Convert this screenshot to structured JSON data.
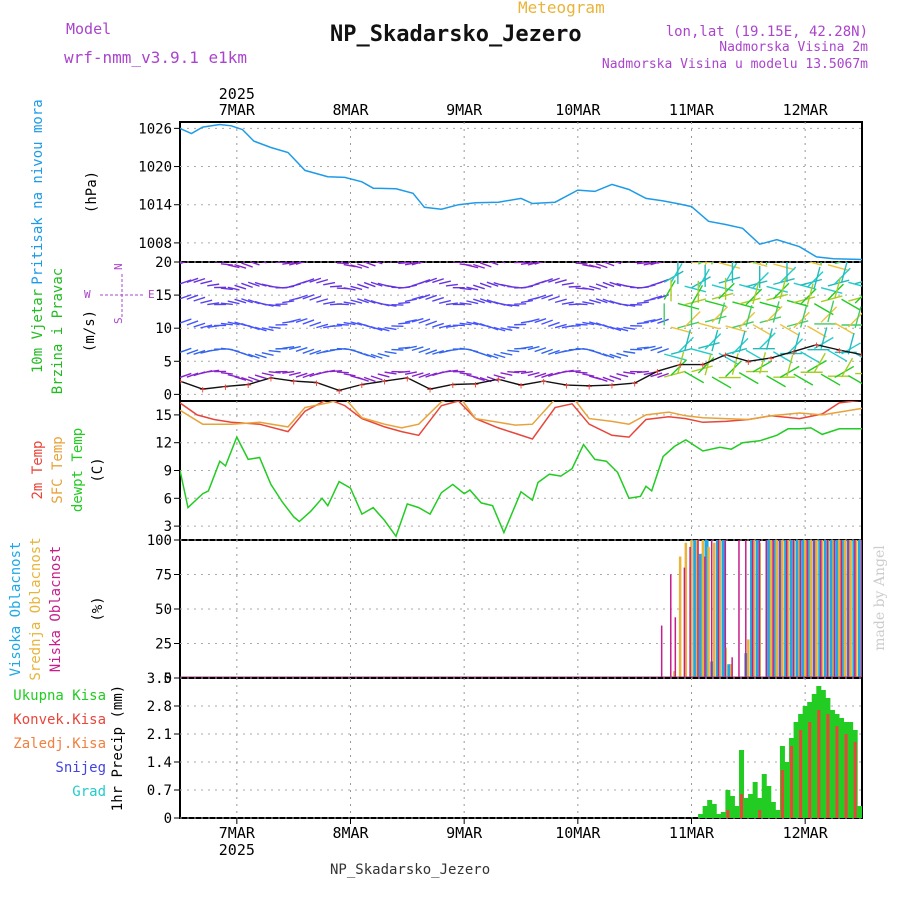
{
  "header": {
    "model_label": "Model",
    "model_name": "wrf-nmm_v3.9.1 e1km",
    "meteogram_label": "Meteogram",
    "station_title": "NP_Skadarsko_Jezero",
    "lonlat": "lon,lat (19.15E, 42.28N)",
    "elevation": "Nadmorska Visina 2m",
    "model_elevation": "Nadmorska Visina u modelu 13.5067m",
    "footer_station": "NP_Skadarsko_Jezero",
    "credit": "made by Angel"
  },
  "colors": {
    "pressure": "#1e9be8",
    "wind_label": "#22bb22",
    "temp2m": "#e8463a",
    "sfc_temp": "#e8a23a",
    "dewpt": "#22cc22",
    "cloud_high": "#1ea8e8",
    "cloud_mid": "#e8b43a",
    "cloud_low": "#c81e8c",
    "precip_total": "#22cc22",
    "precip_conv": "#e8463a",
    "precip_freeze": "#f08040",
    "precip_snow": "#4444dd",
    "precip_grad": "#22cccc",
    "legend_purple": "#aa44cc",
    "title_orange": "#e8b43a"
  },
  "chart_data": [
    {
      "type": "line",
      "panel": "pressure",
      "title": "Pritisak na nivou mora",
      "ylabel": "(hPa)",
      "ylim": [
        1005,
        1027
      ],
      "yticks": [
        1026,
        1020,
        1014,
        1008
      ],
      "x_days": [
        "7MAR",
        "8MAR",
        "9MAR",
        "10MAR",
        "11MAR",
        "12MAR"
      ],
      "top_year": "2025",
      "x_range_days": [
        6.5,
        12.5
      ],
      "series": [
        {
          "x": [
            6.5,
            6.6,
            6.7,
            6.85,
            6.95,
            7.05,
            7.15,
            7.3,
            7.45,
            7.6,
            7.8,
            7.95,
            8.1,
            8.2,
            8.4,
            8.55,
            8.65,
            8.8,
            8.95,
            9.1,
            9.3,
            9.5,
            9.6,
            9.8,
            10.0,
            10.15,
            10.3,
            10.45,
            10.6,
            10.75,
            10.9,
            11.0,
            11.15,
            11.3,
            11.45,
            11.6,
            11.75,
            11.95,
            12.1,
            12.25,
            12.5
          ],
          "values": [
            1026,
            1025.2,
            1026.2,
            1026.6,
            1026.4,
            1025.8,
            1024,
            1023,
            1022.2,
            1019.4,
            1018.4,
            1018.3,
            1017.6,
            1016.6,
            1016.5,
            1015.8,
            1013.6,
            1013.3,
            1014,
            1014.3,
            1014.4,
            1015,
            1014.2,
            1014.4,
            1016.3,
            1016.1,
            1017.2,
            1016.4,
            1015,
            1014.6,
            1014.1,
            1013.7,
            1011.4,
            1010.9,
            1010.3,
            1007.8,
            1008.5,
            1007.4,
            1005.8,
            1005.5,
            1005.4
          ]
        }
      ]
    },
    {
      "type": "scatter",
      "panel": "wind",
      "title": "10m Vjetar Brzina i Pravac",
      "ylabel": "(m/s)",
      "ylim": [
        -1,
        20
      ],
      "yticks": [
        0,
        5,
        10,
        15,
        20
      ],
      "compass": {
        "north": "N",
        "south": "S",
        "east": "E",
        "west": "W"
      },
      "barb_rows": [
        20,
        16.5,
        14,
        10.5,
        6.5,
        3
      ],
      "series": [
        {
          "x": [
            6.5,
            6.7,
            6.9,
            7.1,
            7.3,
            7.5,
            7.7,
            7.9,
            8.1,
            8.3,
            8.5,
            8.7,
            8.9,
            9.1,
            9.3,
            9.5,
            9.7,
            9.9,
            10.1,
            10.3,
            10.5,
            10.7,
            10.9,
            11.1,
            11.3,
            11.5,
            11.7,
            11.9,
            12.1,
            12.3,
            12.5
          ],
          "values": [
            2,
            0.8,
            1.2,
            1.5,
            2.5,
            2,
            1.8,
            0.6,
            1.5,
            2,
            2.5,
            0.8,
            1.5,
            1.6,
            2.3,
            1.4,
            2,
            1.4,
            1.3,
            1.4,
            1.7,
            3.5,
            4.5,
            4.5,
            6,
            5,
            5.5,
            6.5,
            7.5,
            6.7,
            6
          ]
        }
      ]
    },
    {
      "type": "line",
      "panel": "temperature",
      "title_lines": [
        "2m Temp",
        "SFC Temp",
        "dewpt Temp"
      ],
      "ylabel": "(C)",
      "ylim": [
        1.5,
        16.5
      ],
      "yticks": [
        15,
        12,
        9,
        6,
        3
      ],
      "series": [
        {
          "name": "2m Temp",
          "x": [
            6.5,
            6.65,
            6.8,
            6.95,
            7.2,
            7.45,
            7.6,
            7.8,
            7.95,
            8.1,
            8.3,
            8.45,
            8.6,
            8.8,
            8.95,
            9.1,
            9.3,
            9.45,
            9.6,
            9.8,
            9.95,
            10.1,
            10.3,
            10.45,
            10.6,
            10.8,
            10.95,
            11.1,
            11.3,
            11.5,
            11.7,
            11.95,
            12.15,
            12.3,
            12.5
          ],
          "values": [
            16.3,
            15,
            14.5,
            14.2,
            14,
            13.2,
            15.4,
            16.7,
            16,
            14.6,
            13.7,
            13.2,
            12.8,
            16,
            16.5,
            14.6,
            13.6,
            13,
            12.4,
            15.8,
            16.2,
            14,
            12.8,
            12.6,
            14.5,
            14.8,
            14.6,
            14.2,
            14.3,
            14.5,
            14.9,
            14.6,
            15.1,
            16.3,
            16.6
          ]
        },
        {
          "name": "SFC Temp",
          "x": [
            6.5,
            6.7,
            6.95,
            7.2,
            7.45,
            7.6,
            7.8,
            7.95,
            8.1,
            8.3,
            8.45,
            8.6,
            8.8,
            8.95,
            9.1,
            9.3,
            9.45,
            9.6,
            9.8,
            9.95,
            10.1,
            10.3,
            10.45,
            10.6,
            10.8,
            10.95,
            11.1,
            11.3,
            11.5,
            11.7,
            11.95,
            12.15,
            12.3,
            12.5
          ],
          "values": [
            15.5,
            14,
            14,
            14.2,
            13.7,
            15.8,
            16.3,
            16.8,
            14.7,
            14,
            13.6,
            14,
            16.4,
            17.1,
            14.6,
            14.2,
            13.9,
            14,
            16.7,
            17,
            14.6,
            14.3,
            14,
            15,
            15.3,
            14.9,
            14.7,
            14.6,
            14.5,
            14.9,
            15.2,
            15,
            15.3,
            15.7
          ]
        },
        {
          "name": "dewpt Temp",
          "x": [
            6.5,
            6.57,
            6.7,
            6.75,
            6.85,
            6.9,
            7.0,
            7.1,
            7.2,
            7.3,
            7.4,
            7.5,
            7.55,
            7.65,
            7.75,
            7.8,
            7.9,
            8.0,
            8.1,
            8.2,
            8.3,
            8.4,
            8.5,
            8.6,
            8.7,
            8.8,
            8.9,
            9.0,
            9.05,
            9.15,
            9.25,
            9.35,
            9.5,
            9.6,
            9.65,
            9.75,
            9.85,
            9.95,
            10.05,
            10.15,
            10.25,
            10.35,
            10.45,
            10.55,
            10.6,
            10.65,
            10.75,
            10.85,
            10.95,
            11.1,
            11.25,
            11.35,
            11.45,
            11.6,
            11.75,
            11.85,
            11.95,
            12.05,
            12.15,
            12.3,
            12.5
          ],
          "values": [
            9,
            5,
            6.5,
            6.8,
            10,
            9.5,
            12.6,
            10.2,
            10.4,
            7.5,
            5.6,
            4,
            3.5,
            4.6,
            6,
            5.2,
            7.8,
            7.1,
            4.3,
            5,
            3.6,
            1.9,
            5.4,
            5,
            4.3,
            6.6,
            7.5,
            6.5,
            6.9,
            5.5,
            5.2,
            2.3,
            6.7,
            5.8,
            7.7,
            8.6,
            8.4,
            9.2,
            11.8,
            10.2,
            10,
            8.8,
            6,
            6.2,
            7.3,
            6.8,
            10.5,
            11.6,
            12.3,
            11.1,
            11.5,
            11.3,
            12,
            12.2,
            12.8,
            13.5,
            13.5,
            13.6,
            12.9,
            13.5,
            13.5
          ]
        }
      ]
    },
    {
      "type": "bar",
      "panel": "clouds",
      "title_lines": [
        "Visoka Oblacnost",
        "Srednja Oblacnost",
        "Niska Oblacnost"
      ],
      "ylabel": "(%)",
      "ylim": [
        0,
        100
      ],
      "yticks": [
        0,
        25,
        50,
        75,
        100
      ],
      "series": [
        {
          "name": "Visoka Oblacnost",
          "x": [
            11.05,
            11.1,
            11.15,
            11.2,
            11.25,
            11.3,
            11.35,
            11.5,
            11.55,
            11.6,
            11.7,
            11.75,
            11.8,
            11.85,
            11.9,
            11.95,
            12.0,
            12.05,
            12.1,
            12.15,
            12.2,
            12.25,
            12.3,
            12.35,
            12.4,
            12.45,
            12.5
          ],
          "values": [
            100,
            90,
            100,
            12,
            100,
            100,
            10,
            18,
            100,
            100,
            100,
            100,
            100,
            100,
            100,
            100,
            100,
            100,
            100,
            100,
            100,
            100,
            100,
            100,
            100,
            100,
            100
          ]
        },
        {
          "name": "Srednja Oblacnost",
          "x": [
            10.85,
            10.9,
            10.95,
            11.0,
            11.05,
            11.1,
            11.15,
            11.2,
            11.25,
            11.3,
            11.35,
            11.5,
            11.55,
            11.6,
            11.7,
            11.75,
            11.8,
            11.85,
            11.9,
            11.95,
            12.0,
            12.05,
            12.1,
            12.15,
            12.2,
            12.25,
            12.3,
            12.35,
            12.4,
            12.45,
            12.5
          ],
          "values": [
            5,
            88,
            98,
            100,
            100,
            100,
            95,
            98,
            100,
            22,
            10,
            28,
            100,
            98,
            100,
            100,
            100,
            100,
            100,
            100,
            100,
            100,
            100,
            100,
            100,
            100,
            100,
            100,
            100,
            100,
            100
          ]
        },
        {
          "name": "Niska Oblacnost",
          "x": [
            10.72,
            10.8,
            10.84,
            10.92,
            10.97,
            11.04,
            11.1,
            11.16,
            11.22,
            11.28,
            11.34,
            11.4,
            11.46,
            11.52,
            11.58,
            11.64,
            11.7,
            11.76,
            11.82,
            11.88,
            11.94,
            12.0,
            12.06,
            12.12,
            12.18,
            12.24,
            12.3,
            12.36,
            12.42,
            12.48
          ],
          "values": [
            38,
            75,
            44,
            80,
            95,
            100,
            88,
            100,
            100,
            100,
            15,
            100,
            100,
            100,
            100,
            100,
            100,
            100,
            100,
            100,
            100,
            100,
            100,
            100,
            100,
            100,
            100,
            100,
            100,
            100
          ]
        }
      ]
    },
    {
      "type": "bar",
      "panel": "precipitation",
      "title": "1hr Precip (mm)",
      "legend": [
        "Ukupna Kisa",
        "Konvek.Kisa",
        "Zaledj.Kisa",
        "Snijeg",
        "Grad"
      ],
      "ylabel": "1hr Precip (mm)",
      "ylim": [
        0,
        3.5
      ],
      "yticks": [
        0,
        0.7,
        1.4,
        2.1,
        2.8,
        3.5
      ],
      "bottom_year": "2025",
      "series": [
        {
          "name": "Ukupna Kisa",
          "x": [
            11.08,
            11.12,
            11.16,
            11.2,
            11.24,
            11.28,
            11.32,
            11.36,
            11.4,
            11.44,
            11.48,
            11.52,
            11.56,
            11.6,
            11.64,
            11.68,
            11.72,
            11.76,
            11.8,
            11.84,
            11.88,
            11.92,
            11.96,
            12.0,
            12.04,
            12.08,
            12.12,
            12.16,
            12.2,
            12.24,
            12.28,
            12.32,
            12.36,
            12.4,
            12.44,
            12.48
          ],
          "values": [
            0.1,
            0.3,
            0.45,
            0.35,
            0.1,
            0.15,
            0.7,
            0.55,
            0.3,
            1.7,
            0.5,
            0.6,
            0.9,
            0.5,
            1.1,
            0.8,
            0.4,
            0.2,
            1.8,
            1.4,
            2.0,
            2.4,
            2.6,
            2.8,
            2.9,
            3.1,
            3.3,
            3.2,
            3.0,
            2.7,
            2.6,
            2.5,
            2.4,
            2.4,
            2.2,
            0.3
          ]
        },
        {
          "name": "Konvek.Kisa",
          "x": [
            11.32,
            11.44,
            11.6,
            11.8,
            11.88,
            11.96,
            12.04,
            12.12,
            12.2,
            12.28,
            12.36,
            12.44
          ],
          "values": [
            0.2,
            0.6,
            0.2,
            1.2,
            1.8,
            2.2,
            2.4,
            2.7,
            2.6,
            2.3,
            2.1,
            1.9
          ]
        }
      ]
    }
  ]
}
